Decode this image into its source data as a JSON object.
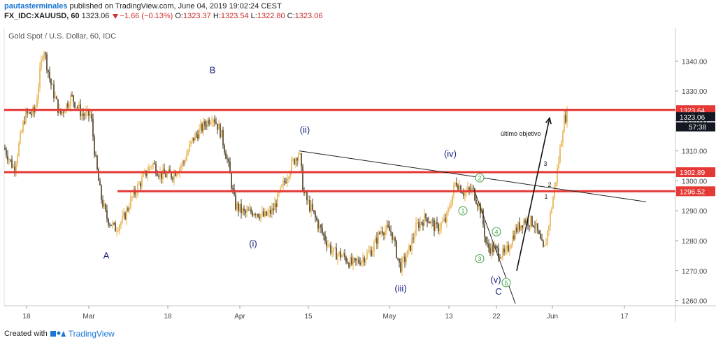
{
  "header": {
    "author": "pautasterminales",
    "published_text": "published on TradingView.com, June 04, 2019 19:02:24 CEST",
    "symbol": "FX_IDC:XAUUSD, 60",
    "last": "1323.06",
    "change": "−1.66 (−0.13%)",
    "o_label": "O:",
    "o_value": "1323.37",
    "h_label": "H:",
    "h_value": "1323.54",
    "l_label": "L:",
    "l_value": "1322.80",
    "c_label": "C:",
    "c_value": "1323.06"
  },
  "footer": {
    "created_with": "Created with",
    "brand": "TradingView"
  },
  "colors": {
    "candle_up": "#e8b04a",
    "candle_down": "#4a3a1f",
    "level_line": "#e53935",
    "price_tag": "#e53935",
    "current_tag": "#131722",
    "wave_label": "#1a237e",
    "circle_label": "#43a047"
  },
  "chart_data": {
    "type": "candlestick",
    "title": "Gold Spot / U.S. Dollar, 60, IDC",
    "x_tick_labels": [
      "18",
      "Mar",
      "18",
      "Apr",
      "15",
      "May",
      "13",
      "22",
      "Jun",
      "17"
    ],
    "y_ticks": [
      1260,
      1270,
      1280,
      1290,
      1300,
      1310,
      1320,
      1330,
      1340
    ],
    "y_tick_labels": [
      "1260.00",
      "1270.00",
      "1280.00",
      "1290.00",
      "1300.00",
      "1310.00",
      "1320.00",
      "1330.00",
      "1340.00"
    ],
    "ylim": [
      1256,
      1350
    ],
    "grid": false,
    "levels": [
      {
        "value": 1323.64,
        "label": "1323.64"
      },
      {
        "value": 1302.89,
        "label": "1302.89"
      },
      {
        "value": 1296.52,
        "label": "1296.52"
      }
    ],
    "current_price": {
      "value": 1323.06,
      "label": "1323.06",
      "countdown": "57:38"
    },
    "price_path": [
      [
        0,
        1311
      ],
      [
        14,
        1304
      ],
      [
        30,
        1322
      ],
      [
        44,
        1323
      ],
      [
        56,
        1345
      ],
      [
        66,
        1333
      ],
      [
        80,
        1322
      ],
      [
        96,
        1328
      ],
      [
        112,
        1322
      ],
      [
        124,
        1322
      ],
      [
        130,
        1308
      ],
      [
        138,
        1295
      ],
      [
        146,
        1288
      ],
      [
        158,
        1284
      ],
      [
        170,
        1287
      ],
      [
        182,
        1294
      ],
      [
        196,
        1300
      ],
      [
        212,
        1306
      ],
      [
        224,
        1302
      ],
      [
        240,
        1302
      ],
      [
        256,
        1306
      ],
      [
        270,
        1314
      ],
      [
        284,
        1318
      ],
      [
        298,
        1322
      ],
      [
        310,
        1316
      ],
      [
        320,
        1306
      ],
      [
        330,
        1292
      ],
      [
        344,
        1289
      ],
      [
        358,
        1290
      ],
      [
        372,
        1288
      ],
      [
        384,
        1290
      ],
      [
        398,
        1298
      ],
      [
        410,
        1305
      ],
      [
        422,
        1310
      ],
      [
        428,
        1296
      ],
      [
        440,
        1290
      ],
      [
        456,
        1282
      ],
      [
        470,
        1276
      ],
      [
        484,
        1275
      ],
      [
        498,
        1272
      ],
      [
        512,
        1274
      ],
      [
        526,
        1277
      ],
      [
        540,
        1284
      ],
      [
        554,
        1283
      ],
      [
        566,
        1271
      ],
      [
        578,
        1276
      ],
      [
        590,
        1285
      ],
      [
        604,
        1288
      ],
      [
        618,
        1284
      ],
      [
        632,
        1287
      ],
      [
        646,
        1300
      ],
      [
        658,
        1296
      ],
      [
        670,
        1297
      ],
      [
        682,
        1290
      ],
      [
        690,
        1278
      ],
      [
        702,
        1277
      ],
      [
        716,
        1275
      ],
      [
        730,
        1283
      ],
      [
        744,
        1287
      ],
      [
        758,
        1286
      ],
      [
        772,
        1276
      ],
      [
        782,
        1290
      ],
      [
        792,
        1305
      ],
      [
        800,
        1320
      ],
      [
        806,
        1323
      ]
    ],
    "wave_labels": [
      {
        "text": "A",
        "t": 146,
        "v": 1274
      },
      {
        "text": "B",
        "t": 298,
        "v": 1336
      },
      {
        "text": "(i)",
        "t": 356,
        "v": 1278
      },
      {
        "text": "(ii)",
        "t": 430,
        "v": 1316
      },
      {
        "text": "(iii)",
        "t": 567,
        "v": 1263
      },
      {
        "text": "(iv)",
        "t": 638,
        "v": 1308
      },
      {
        "text": "(v)",
        "t": 703,
        "v": 1266
      },
      {
        "text": "C",
        "t": 707,
        "v": 1262
      }
    ],
    "circle_labels": [
      {
        "text": "1",
        "t": 656,
        "v": 1290
      },
      {
        "text": "2",
        "t": 680,
        "v": 1301
      },
      {
        "text": "3",
        "t": 680,
        "v": 1274
      },
      {
        "text": "4",
        "t": 704,
        "v": 1283
      },
      {
        "text": "5",
        "t": 718,
        "v": 1266
      }
    ],
    "small_labels": [
      {
        "text": "1",
        "t": 775,
        "v": 1294
      },
      {
        "text": "2",
        "t": 780,
        "v": 1298
      },
      {
        "text": "3",
        "t": 774,
        "v": 1305
      }
    ],
    "annotation": {
      "text": "último objetivo",
      "t": 748,
      "v": 1315
    },
    "trendlines": [
      {
        "from": [
          422,
          1310
        ],
        "to": [
          918,
          1293
        ]
      },
      {
        "from": [
          672,
          1297
        ],
        "to": [
          731,
          1259
        ]
      }
    ],
    "arrow": {
      "from": [
        733,
        1270
      ],
      "to": [
        780,
        1321
      ]
    }
  }
}
